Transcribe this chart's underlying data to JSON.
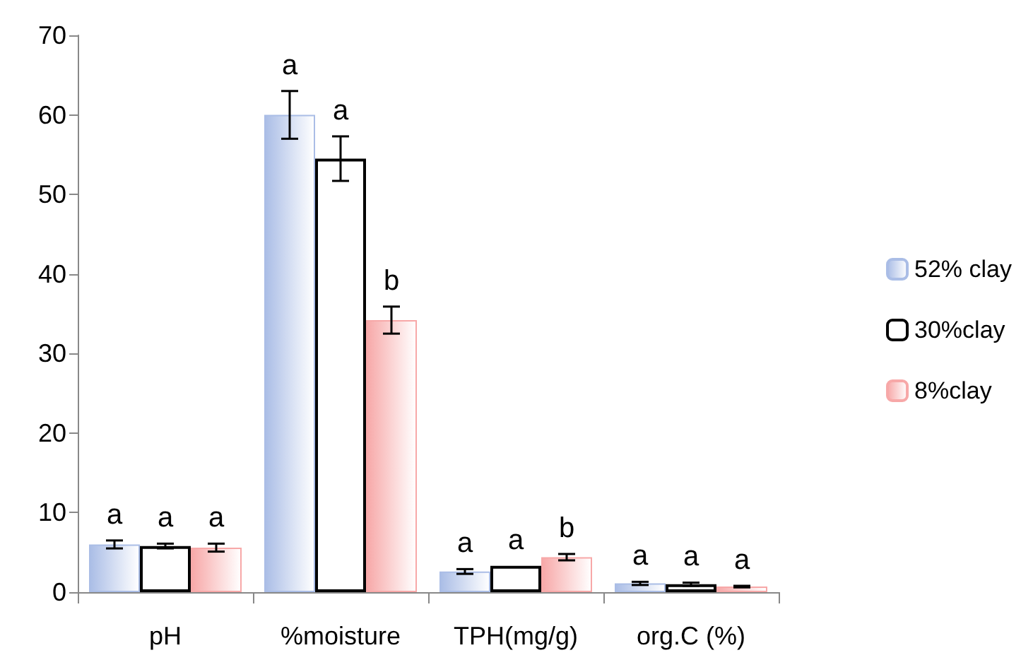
{
  "chart_data": {
    "type": "bar",
    "categories": [
      "pH",
      "%moisture",
      "TPH(mg/g)",
      "org.C (%)"
    ],
    "series": [
      {
        "name": "52% clay",
        "color": "#aabde6",
        "values": [
          6.0,
          60.0,
          2.6,
          1.1
        ],
        "errors": [
          0.5,
          3.0,
          0.3,
          0.2
        ]
      },
      {
        "name": "30%clay",
        "color": "#000000",
        "values": [
          5.8,
          54.5,
          3.3,
          1.0
        ],
        "errors": [
          0.3,
          2.8,
          null,
          0.2
        ]
      },
      {
        "name": "8%clay",
        "color": "#f7a8a8",
        "values": [
          5.6,
          34.2,
          4.4,
          0.7
        ],
        "errors": [
          0.5,
          1.7,
          0.4,
          0.1
        ]
      }
    ],
    "ylim": [
      0,
      70
    ],
    "yticks": [
      0,
      10,
      20,
      30,
      40,
      50,
      60,
      70
    ],
    "grid": false,
    "legend": "right",
    "annotations": [
      "a",
      "a",
      "a",
      "a",
      "a",
      "b",
      "a",
      "a",
      "b",
      "a",
      "a",
      "a"
    ]
  }
}
